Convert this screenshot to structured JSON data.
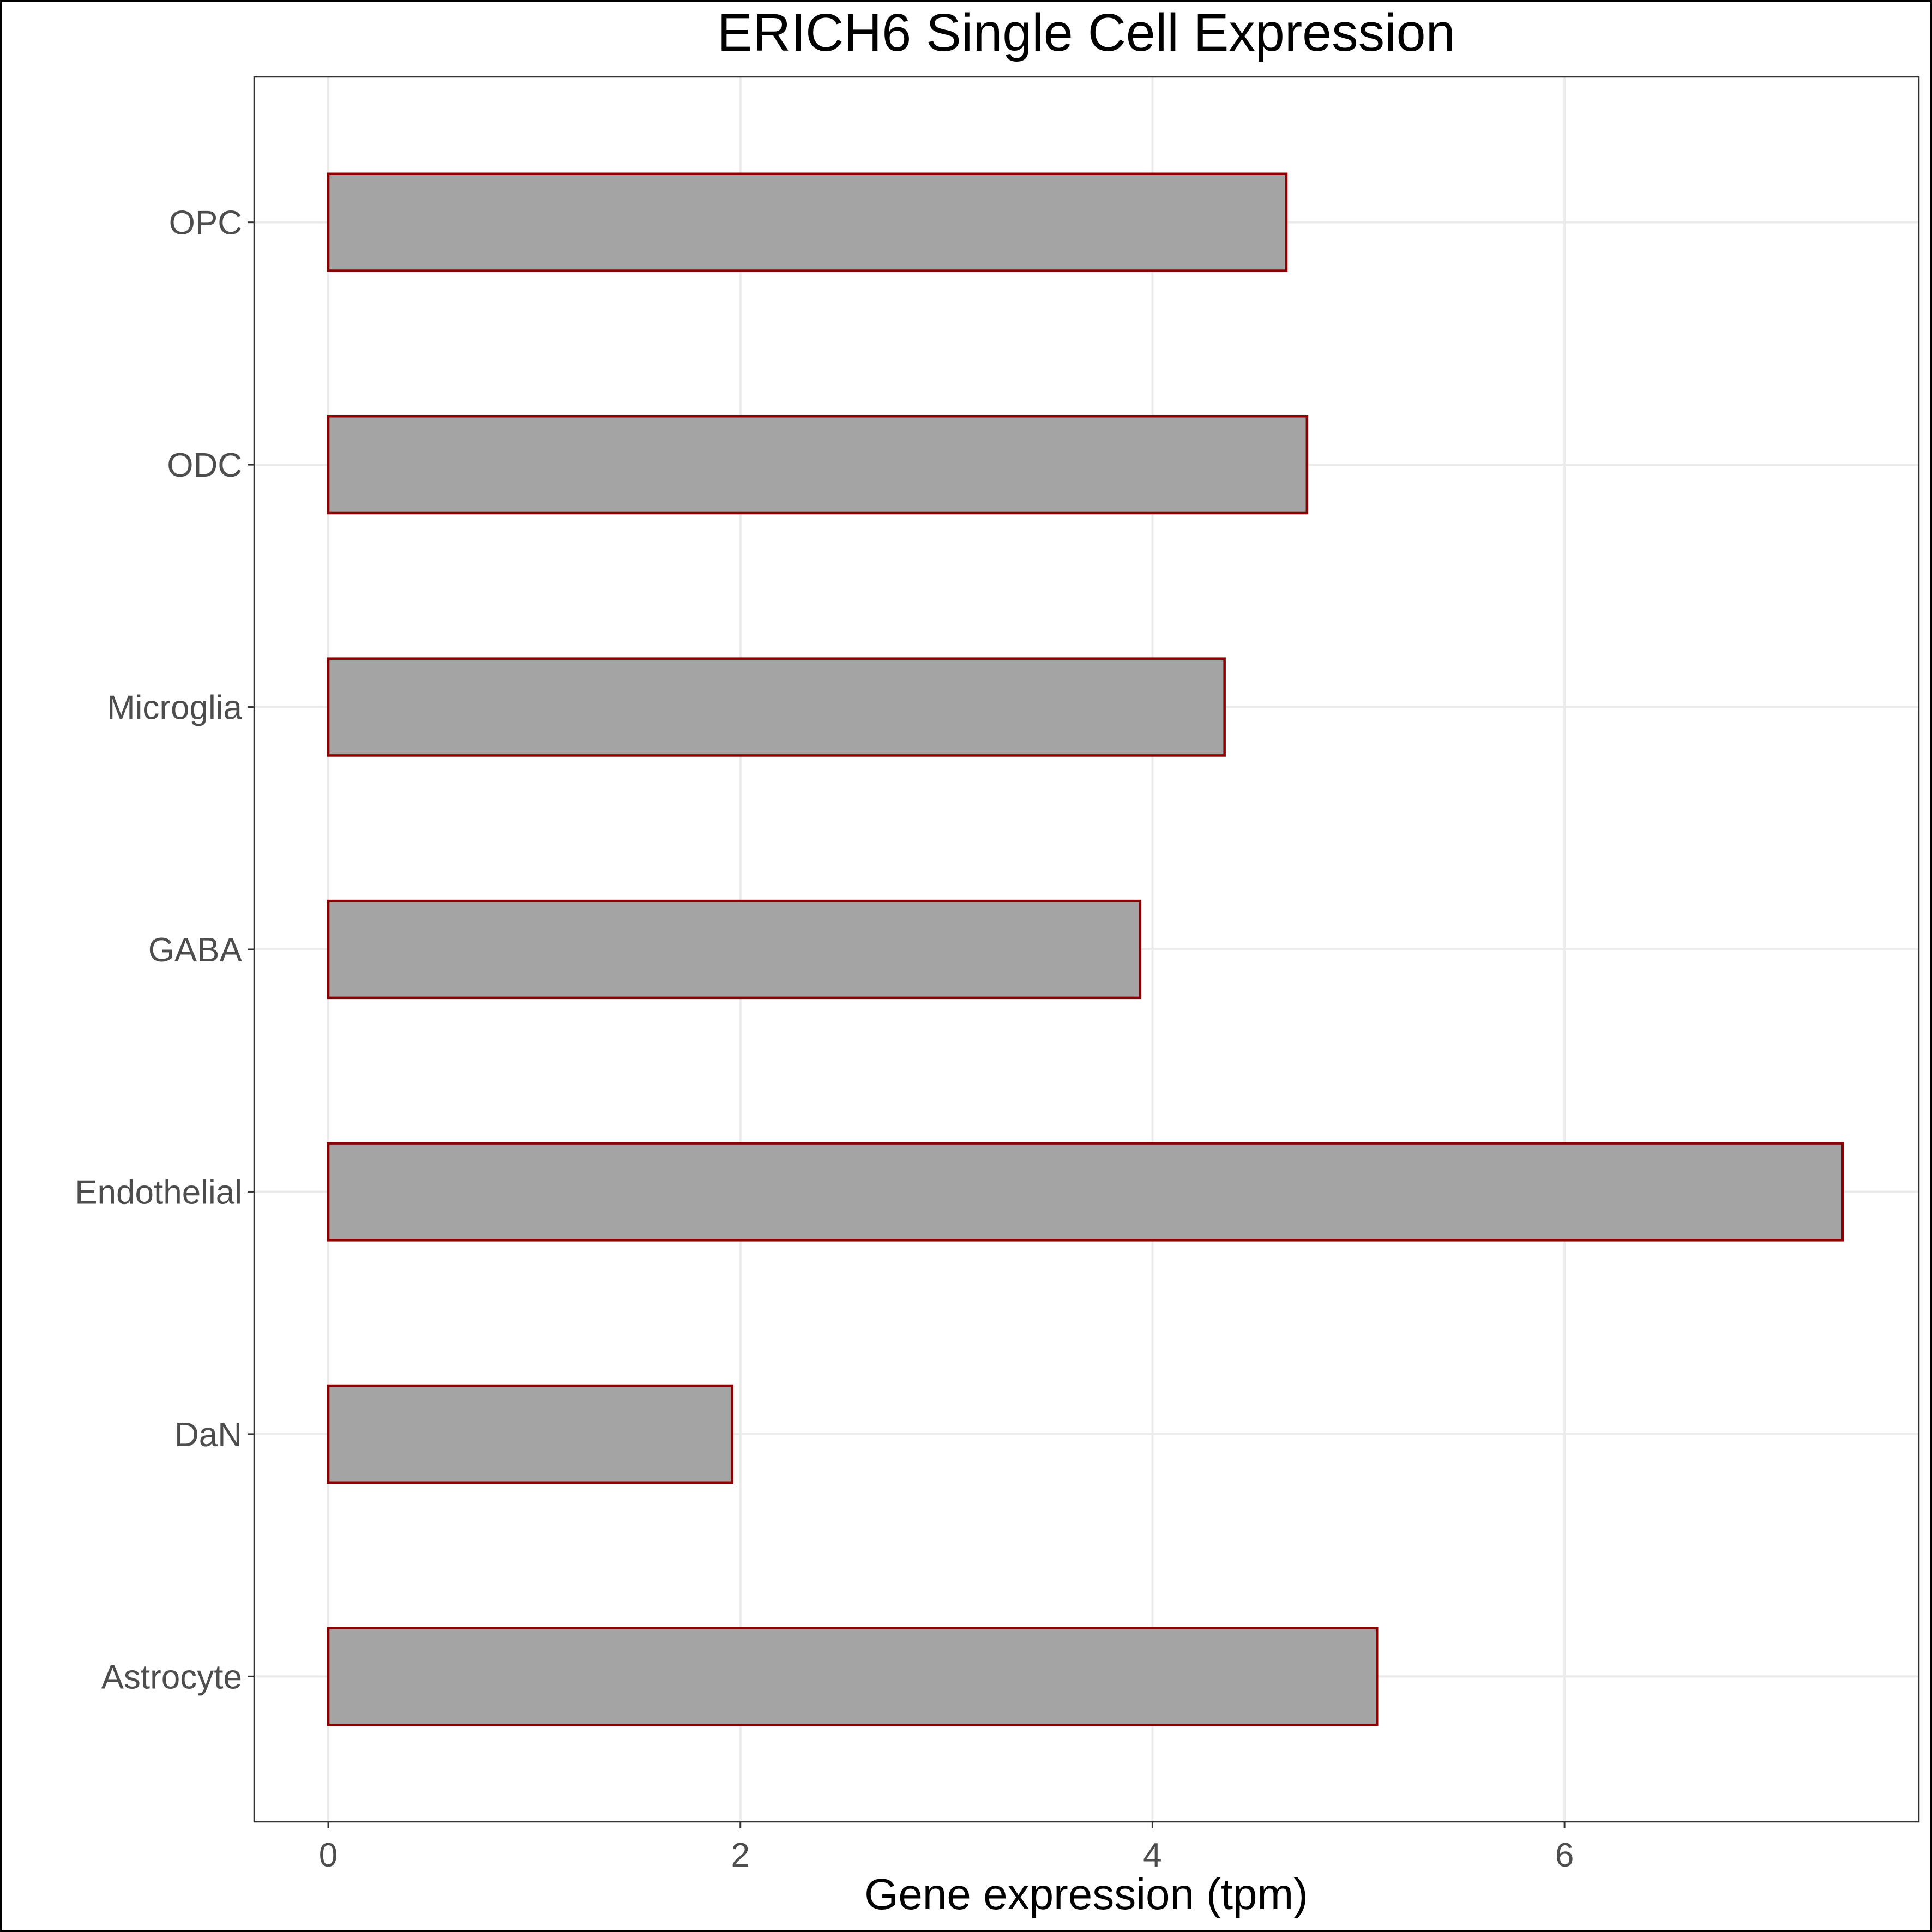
{
  "chart_data": {
    "type": "bar",
    "orientation": "horizontal",
    "title": "ERICH6 Single Cell Expression",
    "xlabel": "Gene expression (tpm)",
    "ylabel": "",
    "categories": [
      "Astrocyte",
      "DaN",
      "Endothelial",
      "GABA",
      "Microglia",
      "ODC",
      "OPC"
    ],
    "values": [
      5.09,
      1.96,
      7.35,
      3.94,
      4.35,
      4.75,
      4.65
    ],
    "xlim": [
      -0.36,
      7.72
    ],
    "xticks": [
      0,
      2,
      4,
      6
    ],
    "xtick_labels": [
      "0",
      "2",
      "4",
      "6"
    ],
    "grid": true,
    "legend": "none",
    "colors": {
      "bar_fill": "#a4a4a4",
      "bar_outline": "#8b0000",
      "grid": "#ebebeb",
      "panel_border": "#333333",
      "tick_label": "#4d4d4d"
    }
  }
}
